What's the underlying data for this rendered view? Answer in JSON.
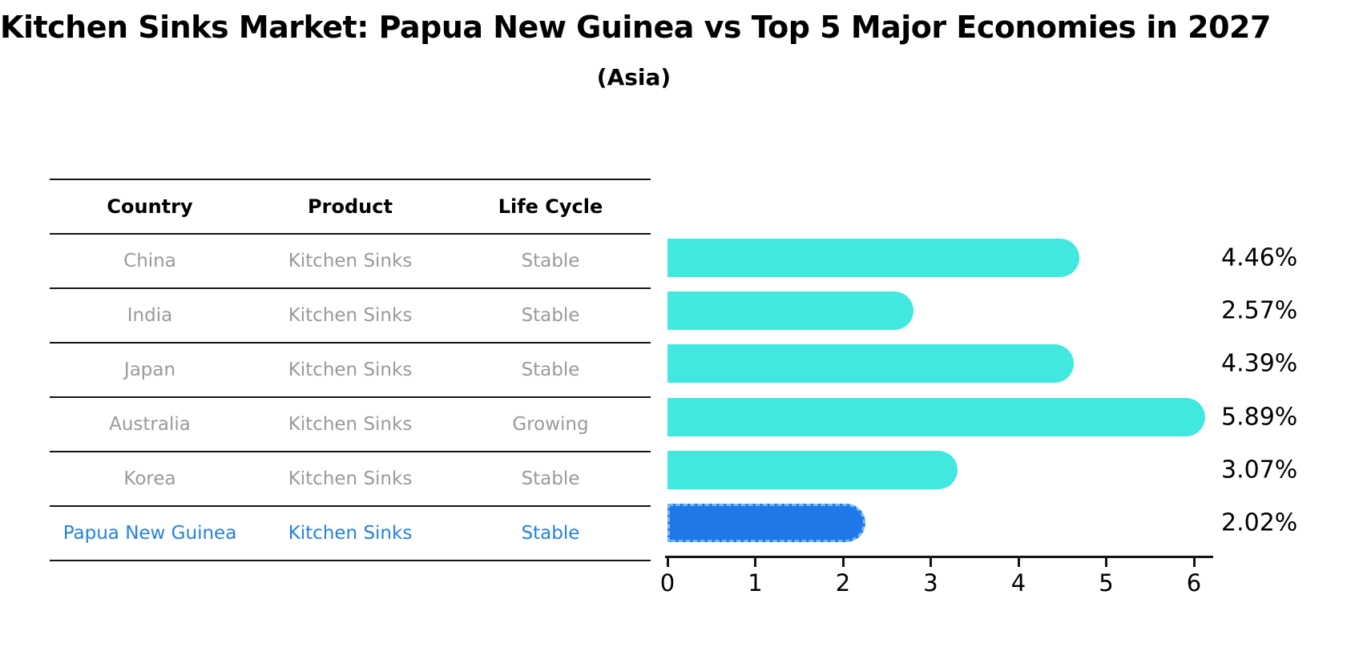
{
  "title": "Kitchen Sinks Market: Papua New Guinea vs Top 5 Major Economies in 2027",
  "subtitle": "(Asia)",
  "table": {
    "headers": [
      "Country",
      "Product",
      "Life Cycle"
    ],
    "rows": [
      {
        "country": "China",
        "product": "Kitchen Sinks",
        "life_cycle": "Stable",
        "highlight": false
      },
      {
        "country": "India",
        "product": "Kitchen Sinks",
        "life_cycle": "Stable",
        "highlight": false
      },
      {
        "country": "Japan",
        "product": "Kitchen Sinks",
        "life_cycle": "Stable",
        "highlight": false
      },
      {
        "country": "Australia",
        "product": "Kitchen Sinks",
        "life_cycle": "Growing",
        "highlight": false
      },
      {
        "country": "Korea",
        "product": "Kitchen Sinks",
        "life_cycle": "Stable",
        "highlight": false
      },
      {
        "country": "Papua New Guinea",
        "product": "Kitchen Sinks",
        "life_cycle": "Stable",
        "highlight": true
      }
    ]
  },
  "chart_data": {
    "type": "bar",
    "orientation": "horizontal",
    "title": "Kitchen Sinks Market: Papua New Guinea vs Top 5 Major Economies in 2027",
    "subtitle": "(Asia)",
    "categories": [
      "China",
      "India",
      "Japan",
      "Australia",
      "Korea",
      "Papua New Guinea"
    ],
    "values": [
      4.46,
      2.57,
      4.39,
      5.89,
      3.07,
      2.02
    ],
    "value_labels": [
      "4.46%",
      "2.57%",
      "4.39%",
      "5.89%",
      "3.07%",
      "2.02%"
    ],
    "highlight_index": 5,
    "x_ticks": [
      "0",
      "1",
      "2",
      "3",
      "4",
      "5",
      "6"
    ],
    "xlim": [
      0,
      6.21
    ],
    "grid": false,
    "legend": false
  },
  "colors": {
    "bar": "#40E8E0",
    "highlight_bar": "#2077E8",
    "highlight_bar_border": "#74B6F7",
    "row_text": "#9A9A9A",
    "highlight_text": "#2781DA",
    "header_text": "#000000",
    "axis": "#141414"
  }
}
